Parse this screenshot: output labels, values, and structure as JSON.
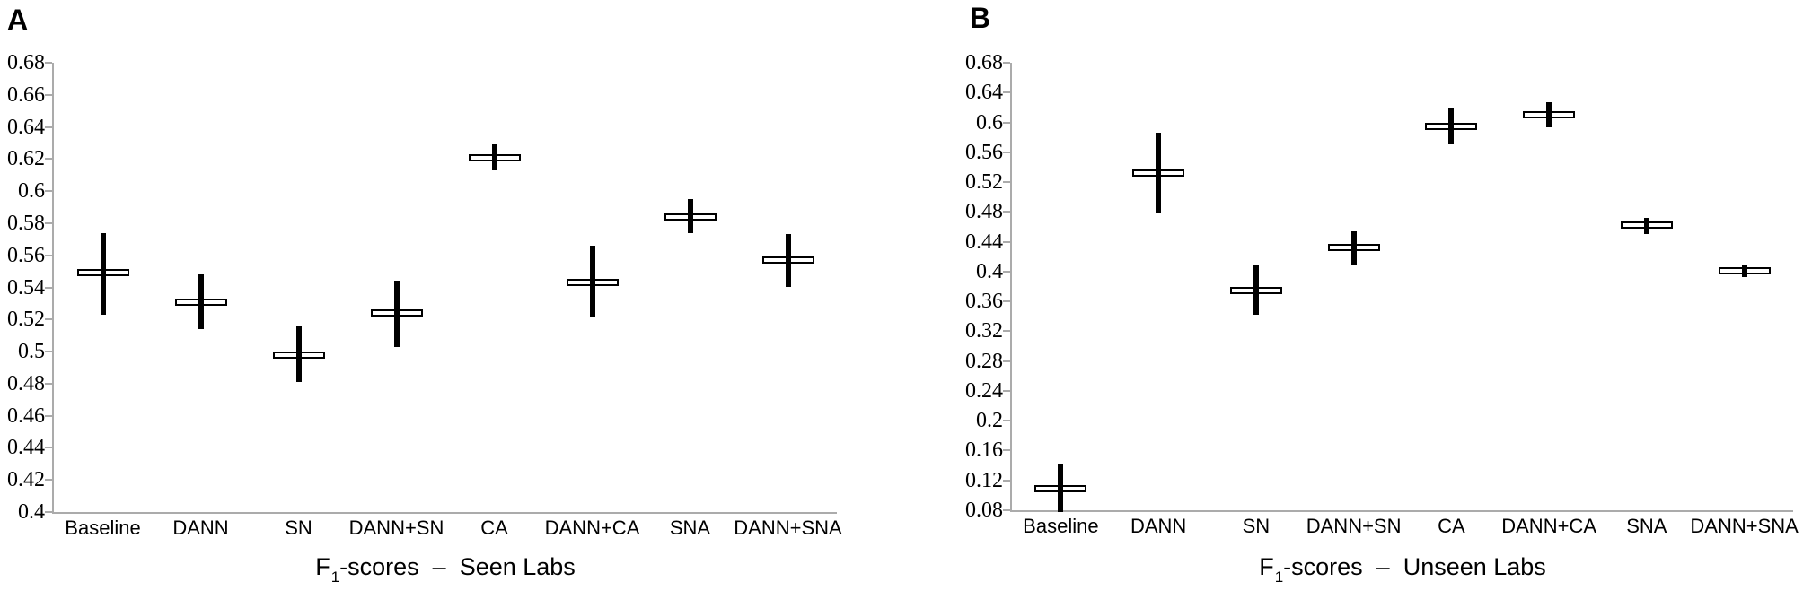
{
  "colors": {
    "marker": "#000000",
    "mean_fill": "#ffffff",
    "axis": "#ababab",
    "text": "#000000",
    "background": "#ffffff"
  },
  "chart_data": [
    {
      "type": "errorbar",
      "panel_label": "A",
      "title": "F1-scores – Seen Labs",
      "xlabel": "F1-scores – Seen Labs",
      "caption": {
        "f": "F",
        "sub": "1",
        "rest": "-scores  –  Seen Labs"
      },
      "categories": [
        "Baseline",
        "DANN",
        "SN",
        "DANN+SN",
        "CA",
        "DANN+CA",
        "SNA",
        "DANN+SNA"
      ],
      "series": [
        {
          "name": "mean F1",
          "values": [
            0.549,
            0.531,
            0.498,
            0.524,
            0.621,
            0.543,
            0.584,
            0.557
          ]
        },
        {
          "name": "lower whisker",
          "values": [
            0.523,
            0.514,
            0.481,
            0.503,
            0.613,
            0.522,
            0.574,
            0.54
          ]
        },
        {
          "name": "upper whisker",
          "values": [
            0.574,
            0.548,
            0.516,
            0.544,
            0.629,
            0.566,
            0.595,
            0.573
          ]
        }
      ],
      "ylim": [
        0.4,
        0.68
      ],
      "ytick_step": 0.02,
      "yticks": [
        "0.68",
        "0.66",
        "0.64",
        "0.62",
        "0.6",
        "0.58",
        "0.56",
        "0.54",
        "0.52",
        "0.5",
        "0.48",
        "0.46",
        "0.44",
        "0.42",
        "0.4"
      ],
      "grid": false,
      "legend": null
    },
    {
      "type": "errorbar",
      "panel_label": "B",
      "title": "F1-scores – Unseen Labs",
      "xlabel": "F1-scores – Unseen Labs",
      "caption": {
        "f": "F",
        "sub": "1",
        "rest": "-scores  –  Unseen Labs"
      },
      "categories": [
        "Baseline",
        "DANN",
        "SN",
        "DANN+SN",
        "CA",
        "DANN+CA",
        "SNA",
        "DANN+SNA"
      ],
      "series": [
        {
          "name": "mean F1",
          "values": [
            0.109,
            0.532,
            0.374,
            0.432,
            0.595,
            0.61,
            0.462,
            0.401
          ]
        },
        {
          "name": "lower whisker",
          "values": [
            0.078,
            0.478,
            0.342,
            0.408,
            0.57,
            0.594,
            0.45,
            0.393
          ]
        },
        {
          "name": "upper whisker",
          "values": [
            0.143,
            0.586,
            0.41,
            0.454,
            0.62,
            0.627,
            0.472,
            0.409
          ]
        }
      ],
      "ylim": [
        0.08,
        0.68
      ],
      "ytick_step": 0.04,
      "yticks": [
        "0.68",
        "0.64",
        "0.6",
        "0.56",
        "0.52",
        "0.48",
        "0.44",
        "0.4",
        "0.36",
        "0.32",
        "0.28",
        "0.24",
        "0.2",
        "0.16",
        "0.12",
        "0.08"
      ],
      "grid": false,
      "legend": null
    }
  ]
}
